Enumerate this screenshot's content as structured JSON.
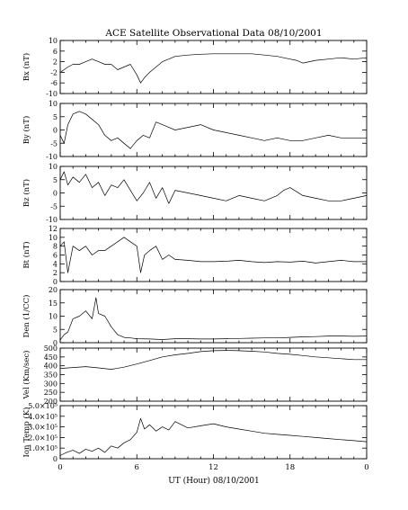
{
  "chart_data": {
    "type": "line",
    "title": "ACE Satellite Observational Data   08/10/2001",
    "xlabel": "UT (Hour)   08/10/2001",
    "x_ticks": [
      "0",
      "6",
      "12",
      "18",
      "0"
    ],
    "xlim": [
      0,
      24
    ],
    "panels": [
      {
        "ylabel": "Bx (nT)",
        "ylim": [
          -10,
          10
        ],
        "y_ticks": [
          "10",
          "6",
          "2",
          "-2",
          "-6",
          "-10"
        ],
        "y_tick_values": [
          10,
          6,
          2,
          -2,
          -6,
          -10
        ],
        "series": [
          {
            "x": [
              0,
              0.3,
              0.6,
              1,
              1.5,
              2,
              2.5,
              3,
              3.5,
              4,
              4.5,
              5,
              5.5,
              6,
              6.3,
              6.6,
              7,
              7.5,
              8,
              8.5,
              9,
              10,
              11,
              12,
              13,
              14,
              15,
              16,
              17,
              18,
              18.5,
              19,
              20,
              21,
              22,
              23,
              24
            ],
            "y": [
              -2,
              -1,
              0,
              1,
              1,
              2,
              3,
              2,
              1,
              1,
              -1,
              0,
              1,
              -3,
              -6,
              -4,
              -2,
              0,
              2,
              3,
              4,
              4.5,
              4.8,
              5,
              5,
              5,
              5,
              4.5,
              4,
              3,
              2.5,
              1.5,
              2.5,
              3,
              3.5,
              3,
              3.5
            ]
          }
        ]
      },
      {
        "ylabel": "By (nT)",
        "ylim": [
          -10,
          10
        ],
        "y_ticks": [
          "10",
          "5",
          "0",
          "-5",
          "-10"
        ],
        "y_tick_values": [
          10,
          5,
          0,
          -5,
          -10
        ],
        "series": [
          {
            "x": [
              0,
              0.3,
              0.6,
              1,
              1.5,
              2,
              2.5,
              3,
              3.5,
              4,
              4.5,
              5,
              5.5,
              6,
              6.5,
              7,
              7.5,
              8,
              8.5,
              9,
              10,
              11,
              12,
              13,
              14,
              15,
              16,
              17,
              18,
              19,
              20,
              21,
              22,
              23,
              24
            ],
            "y": [
              -2,
              -5,
              2,
              6,
              7,
              6,
              4,
              2,
              -2,
              -4,
              -3,
              -5,
              -7,
              -4,
              -2,
              -3,
              3,
              2,
              1,
              0,
              1,
              2,
              0,
              -1,
              -2,
              -3,
              -4,
              -3,
              -4,
              -4,
              -3,
              -2,
              -3,
              -3,
              -3
            ]
          }
        ]
      },
      {
        "ylabel": "Bz (nT)",
        "ylim": [
          -10,
          10
        ],
        "y_ticks": [
          "10",
          "5",
          "0",
          "-5",
          "-10"
        ],
        "y_tick_values": [
          10,
          5,
          0,
          -5,
          -10
        ],
        "series": [
          {
            "x": [
              0,
              0.3,
              0.6,
              1,
              1.5,
              2,
              2.5,
              3,
              3.5,
              4,
              4.5,
              5,
              5.5,
              6,
              6.5,
              7,
              7.5,
              8,
              8.5,
              9,
              10,
              11,
              12,
              13,
              14,
              15,
              16,
              17,
              17.5,
              18,
              19,
              20,
              21,
              22,
              23,
              24
            ],
            "y": [
              5,
              8,
              3,
              6,
              4,
              7,
              2,
              4,
              -1,
              3,
              2,
              5,
              1,
              -3,
              0,
              4,
              -2,
              2,
              -4,
              1,
              0,
              -1,
              -2,
              -3,
              -1,
              -2,
              -3,
              -1,
              1,
              2,
              -1,
              -2,
              -3,
              -3,
              -2,
              -1
            ]
          }
        ]
      },
      {
        "ylabel": "Bt (nT)",
        "ylim": [
          0,
          12
        ],
        "y_ticks": [
          "12",
          "10",
          "8",
          "6",
          "4",
          "2",
          "0"
        ],
        "y_tick_values": [
          12,
          10,
          8,
          6,
          4,
          2,
          0
        ],
        "series": [
          {
            "x": [
              0,
              0.3,
              0.6,
              1,
              1.5,
              2,
              2.5,
              3,
              3.5,
              4,
              4.5,
              5,
              5.5,
              6,
              6.3,
              6.6,
              7,
              7.5,
              8,
              8.5,
              9,
              10,
              11,
              12,
              13,
              14,
              15,
              16,
              17,
              18,
              19,
              20,
              21,
              22,
              23,
              24
            ],
            "y": [
              8,
              9,
              2,
              8,
              7,
              8,
              6,
              7,
              7,
              8,
              9,
              10,
              9,
              8,
              2,
              6,
              7,
              8,
              5,
              6,
              5,
              4.8,
              4.5,
              4.5,
              4.6,
              4.8,
              4.5,
              4.3,
              4.5,
              4.4,
              4.6,
              4.2,
              4.5,
              4.8,
              4.5,
              4.5
            ]
          }
        ]
      },
      {
        "ylabel": "Den (1/CC)",
        "ylim": [
          0,
          20
        ],
        "y_ticks": [
          "20",
          "15",
          "10",
          "5",
          "0"
        ],
        "y_tick_values": [
          20,
          15,
          10,
          5,
          0
        ],
        "series": [
          {
            "x": [
              0,
              0.3,
              0.6,
              1,
              1.5,
              2,
              2.5,
              2.8,
              3,
              3.5,
              4,
              4.5,
              5,
              5.5,
              6,
              7,
              8,
              9,
              10,
              11,
              12,
              13,
              14,
              15,
              16,
              17,
              18,
              19,
              20,
              21,
              22,
              23,
              24
            ],
            "y": [
              1,
              3,
              4,
              9,
              10,
              12,
              9,
              17,
              11,
              10,
              6,
              3,
              2,
              1.8,
              1.5,
              1.4,
              1.2,
              1.5,
              1.5,
              1.4,
              1.4,
              1.5,
              1.6,
              1.7,
              1.8,
              1.8,
              2,
              2.2,
              2.3,
              2.5,
              2.5,
              2.4,
              2.5
            ]
          }
        ]
      },
      {
        "ylabel": "Vel (Km/sec)",
        "ylim": [
          200,
          500
        ],
        "y_ticks": [
          "500",
          "450",
          "400",
          "350",
          "300",
          "250",
          "200"
        ],
        "y_tick_values": [
          500,
          450,
          400,
          350,
          300,
          250,
          200
        ],
        "series": [
          {
            "x": [
              0,
              1,
              2,
              3,
              4,
              5,
              6,
              7,
              8,
              9,
              10,
              11,
              12,
              13,
              14,
              15,
              16,
              17,
              18,
              19,
              20,
              21,
              22,
              23,
              24
            ],
            "y": [
              385,
              390,
              395,
              388,
              380,
              392,
              410,
              430,
              450,
              462,
              470,
              480,
              485,
              487,
              485,
              482,
              478,
              470,
              465,
              458,
              450,
              445,
              440,
              435,
              435
            ]
          }
        ]
      },
      {
        "ylabel": "Ion Temp (K)",
        "ylim": [
          0,
          500000
        ],
        "y_ticks": [
          "5.0×10⁵",
          "4.0×10⁵",
          "3.0×10⁵",
          "2.0×10⁵",
          "1.0×10⁵",
          "0"
        ],
        "y_tick_values": [
          500000,
          400000,
          300000,
          200000,
          100000,
          0
        ],
        "series": [
          {
            "x": [
              0,
              0.5,
              1,
              1.5,
              2,
              2.5,
              3,
              3.5,
              4,
              4.5,
              5,
              5.5,
              6,
              6.3,
              6.6,
              7,
              7.5,
              8,
              8.5,
              9,
              10,
              11,
              12,
              13,
              14,
              15,
              16,
              17,
              18,
              19,
              20,
              21,
              22,
              23,
              24
            ],
            "y": [
              30000,
              60000,
              80000,
              50000,
              90000,
              70000,
              100000,
              60000,
              120000,
              100000,
              150000,
              180000,
              250000,
              380000,
              280000,
              320000,
              260000,
              300000,
              270000,
              350000,
              290000,
              310000,
              330000,
              300000,
              280000,
              260000,
              240000,
              230000,
              220000,
              210000,
              200000,
              190000,
              180000,
              170000,
              160000
            ]
          }
        ]
      }
    ]
  }
}
